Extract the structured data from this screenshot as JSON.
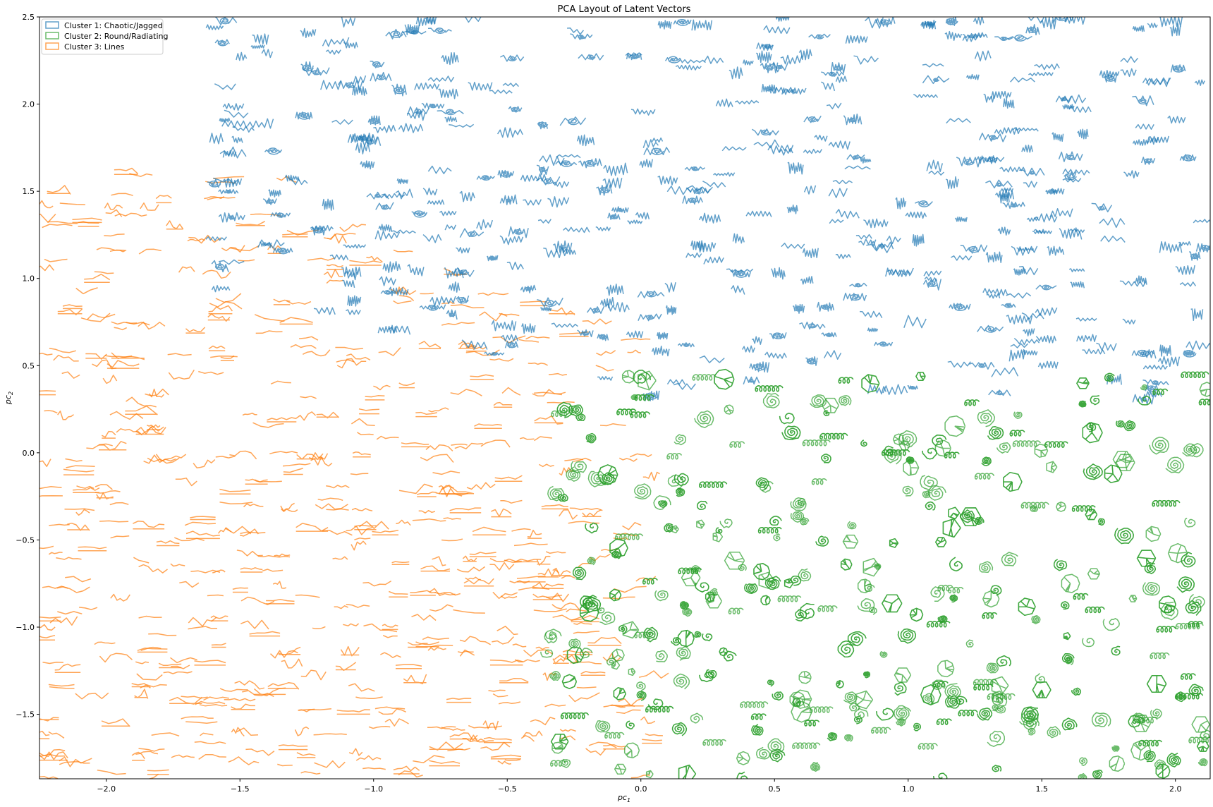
{
  "chart_data": {
    "type": "scatter",
    "title": "PCA Layout of Latent Vectors",
    "xlabel": "pc",
    "xlabel_sub": "1",
    "ylabel": "pc",
    "ylabel_sub": "2",
    "xlim": [
      -2.25,
      2.13
    ],
    "ylim": [
      -1.87,
      2.5
    ],
    "xticks": [
      -2.0,
      -1.5,
      -1.0,
      -0.5,
      0.0,
      0.5,
      1.0,
      1.5,
      2.0
    ],
    "xtick_labels": [
      "−2.0",
      "−1.5",
      "−1.0",
      "−0.5",
      "0.0",
      "0.5",
      "1.0",
      "1.5",
      "2.0"
    ],
    "yticks": [
      -1.5,
      -1.0,
      -0.5,
      0.0,
      0.5,
      1.0,
      1.5,
      2.0,
      2.5
    ],
    "ytick_labels": [
      "−1.5",
      "−1.0",
      "−0.5",
      "0.0",
      "0.5",
      "1.0",
      "1.5",
      "2.0",
      "2.5"
    ],
    "grid": false,
    "legend_position": "top-left",
    "series": [
      {
        "name": "Cluster 1: Chaotic/Jagged",
        "color": "#1f77b4",
        "marker_style": "jagged",
        "region": {
          "x": [
            -1.6,
            2.13
          ],
          "y": [
            0.3,
            2.5
          ]
        },
        "count": 460
      },
      {
        "name": "Cluster 2: Round/Radiating",
        "color": "#2ca02c",
        "marker_style": "round",
        "region": {
          "x": [
            -0.35,
            2.13
          ],
          "y": [
            -1.87,
            0.45
          ]
        },
        "count": 560
      },
      {
        "name": "Cluster 3: Lines",
        "color": "#ff7f0e",
        "marker_style": "lines",
        "region": {
          "x": [
            -2.25,
            0.05
          ],
          "y": [
            -1.87,
            1.65
          ]
        },
        "count": 520
      }
    ]
  }
}
